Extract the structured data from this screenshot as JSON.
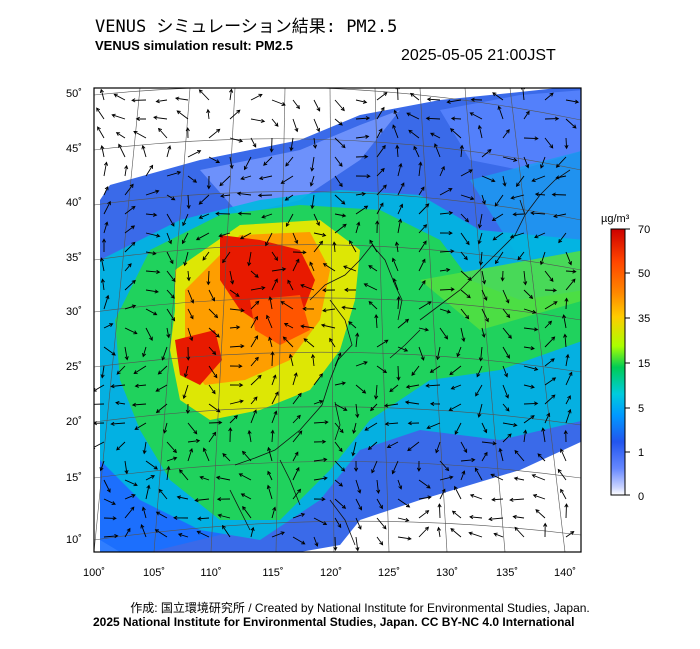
{
  "title_jp": "VENUS シミュレーション結果: PM2.5",
  "title_en": "VENUS simulation result: PM2.5",
  "datetime": "2025-05-05 21:00JST",
  "lat_labels": [
    "50˚",
    "45˚",
    "40˚",
    "35˚",
    "30˚",
    "25˚",
    "20˚",
    "15˚",
    "10˚"
  ],
  "lon_labels": [
    "100˚",
    "105˚",
    "110˚",
    "115˚",
    "120˚",
    "125˚",
    "130˚",
    "135˚",
    "140˚"
  ],
  "colorbar": {
    "unit": "µg/m³",
    "ticks": [
      "70",
      "50",
      "35",
      "15",
      "5",
      "1",
      "0"
    ],
    "colors": [
      "#cc0000",
      "#ff4400",
      "#ff8800",
      "#ffcc00",
      "#aaff00",
      "#00cc55",
      "#00ccdd",
      "#0099ff",
      "#2255ee",
      "#6688ff",
      "#c8d2ff",
      "#ffffff"
    ]
  },
  "credit_line1": "作成: 国立環境研究所 / Created by National Institute for Environmental Studies, Japan.",
  "credit_line2": "2025 National Institute for Environmental Studies, Japan. CC BY-NC 4.0 International"
}
